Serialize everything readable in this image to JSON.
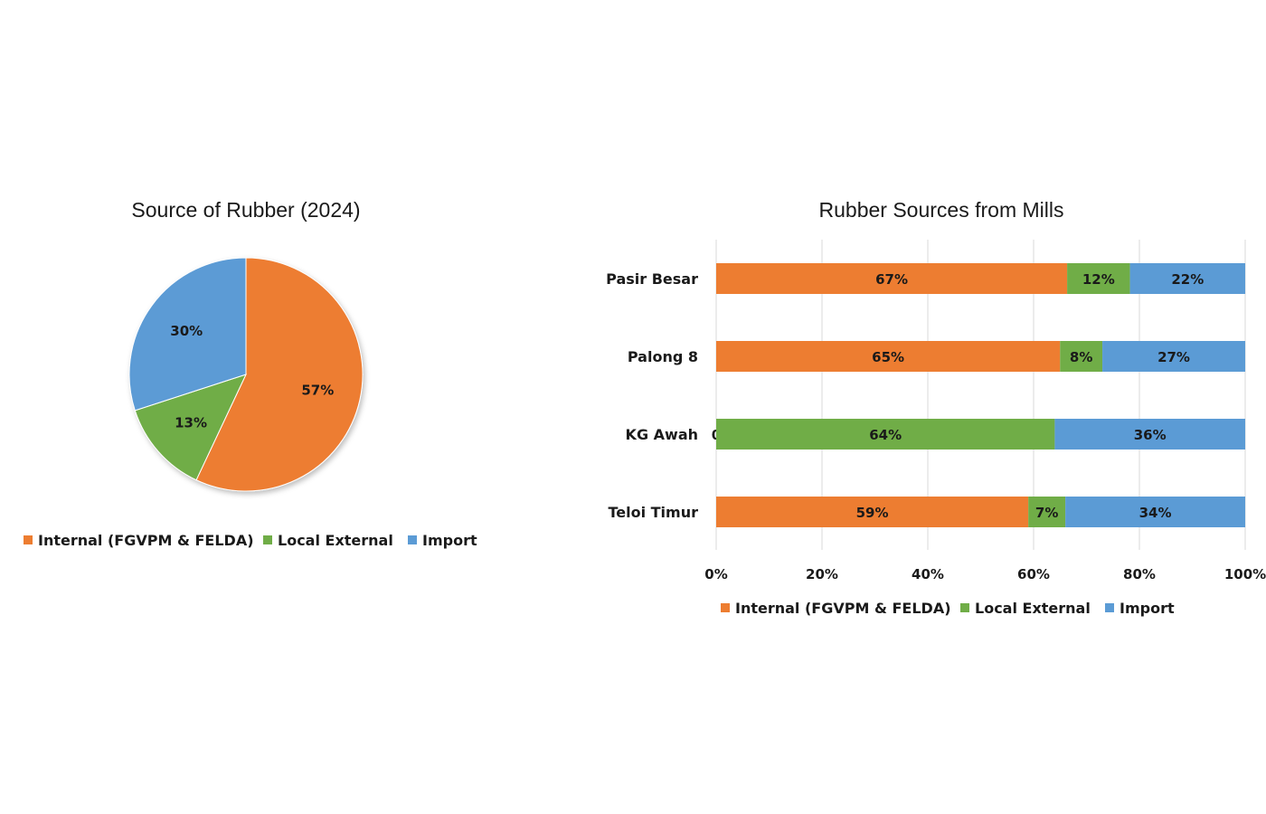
{
  "colors": {
    "internal": "#ed7d31",
    "local": "#70ad47",
    "import": "#5b9bd5"
  },
  "chart_data": [
    {
      "type": "pie",
      "title": "Source of Rubber (2024)",
      "categories": [
        "Internal (FGVPM & FELDA)",
        "Local External",
        "Import"
      ],
      "values": [
        57,
        13,
        30
      ],
      "value_labels": [
        "57%",
        "13%",
        "30%"
      ],
      "legend": "bottom"
    },
    {
      "type": "bar",
      "orientation": "horizontal",
      "stacked": "percent",
      "title": "Rubber Sources from Mills",
      "categories": [
        "Pasir Besar",
        "Palong 8",
        "KG Awah",
        "Teloi Timur"
      ],
      "series": [
        {
          "name": "Internal (FGVPM & FELDA)",
          "values": [
            67,
            65,
            0,
            59
          ],
          "labels": [
            "67%",
            "65%",
            "0",
            "59%"
          ]
        },
        {
          "name": "Local External",
          "values": [
            12,
            8,
            64,
            7
          ],
          "labels": [
            "12%",
            "8%",
            "64%",
            "7%"
          ]
        },
        {
          "name": "Import",
          "values": [
            22,
            27,
            36,
            34
          ],
          "labels": [
            "22%",
            "27%",
            "36%",
            "34%"
          ]
        }
      ],
      "xlim": [
        0,
        100
      ],
      "xticks": [
        "0%",
        "20%",
        "40%",
        "60%",
        "80%",
        "100%"
      ],
      "grid": true,
      "legend": "bottom"
    }
  ]
}
